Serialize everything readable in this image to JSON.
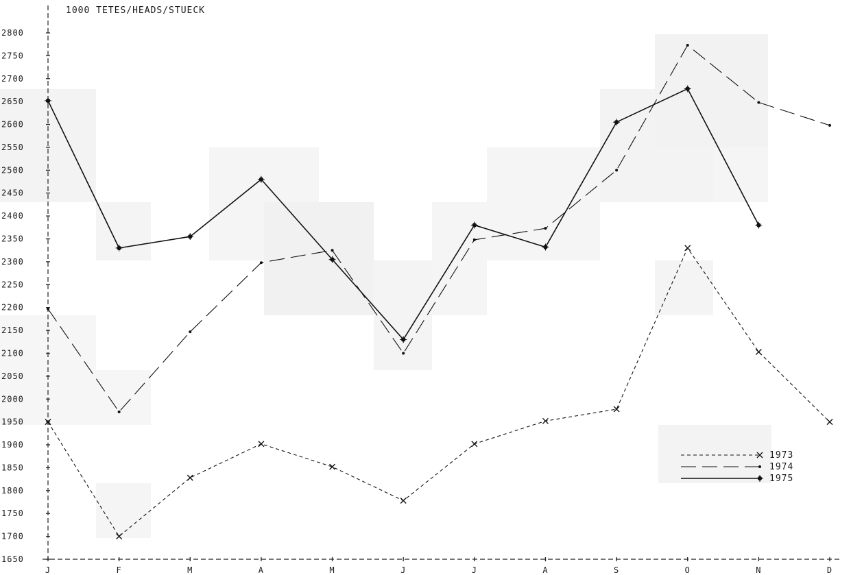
{
  "chart_data": {
    "type": "line",
    "title": "",
    "ylabel": "1000 TETES/HEADS/STUECK",
    "xlabel": "",
    "categories": [
      "J",
      "F",
      "M",
      "A",
      "M",
      "J",
      "J",
      "A",
      "S",
      "O",
      "N",
      "D"
    ],
    "ylim": [
      1650,
      2800
    ],
    "yticks": [
      1650,
      1700,
      1750,
      1800,
      1850,
      1900,
      1950,
      2000,
      2050,
      2100,
      2150,
      2200,
      2250,
      2300,
      2350,
      2400,
      2450,
      2500,
      2550,
      2600,
      2650,
      2700,
      2750,
      2800
    ],
    "grid": false,
    "legend": "bottom-right",
    "series": [
      {
        "name": "1973",
        "style": "short-dash",
        "marker": "x",
        "values": [
          1950,
          1700,
          1828,
          1902,
          1852,
          1778,
          1902,
          1952,
          1978,
          2330,
          2103,
          1950
        ]
      },
      {
        "name": "1974",
        "style": "long-dash",
        "marker": "dot",
        "values": [
          2197,
          1972,
          2147,
          2298,
          2325,
          2100,
          2348,
          2373,
          2500,
          2773,
          2648,
          2598
        ]
      },
      {
        "name": "1975",
        "style": "solid",
        "marker": "star",
        "values": [
          2652,
          2330,
          2355,
          2480,
          2305,
          2130,
          2380,
          2332,
          2605,
          2678,
          2380,
          null
        ]
      }
    ]
  }
}
